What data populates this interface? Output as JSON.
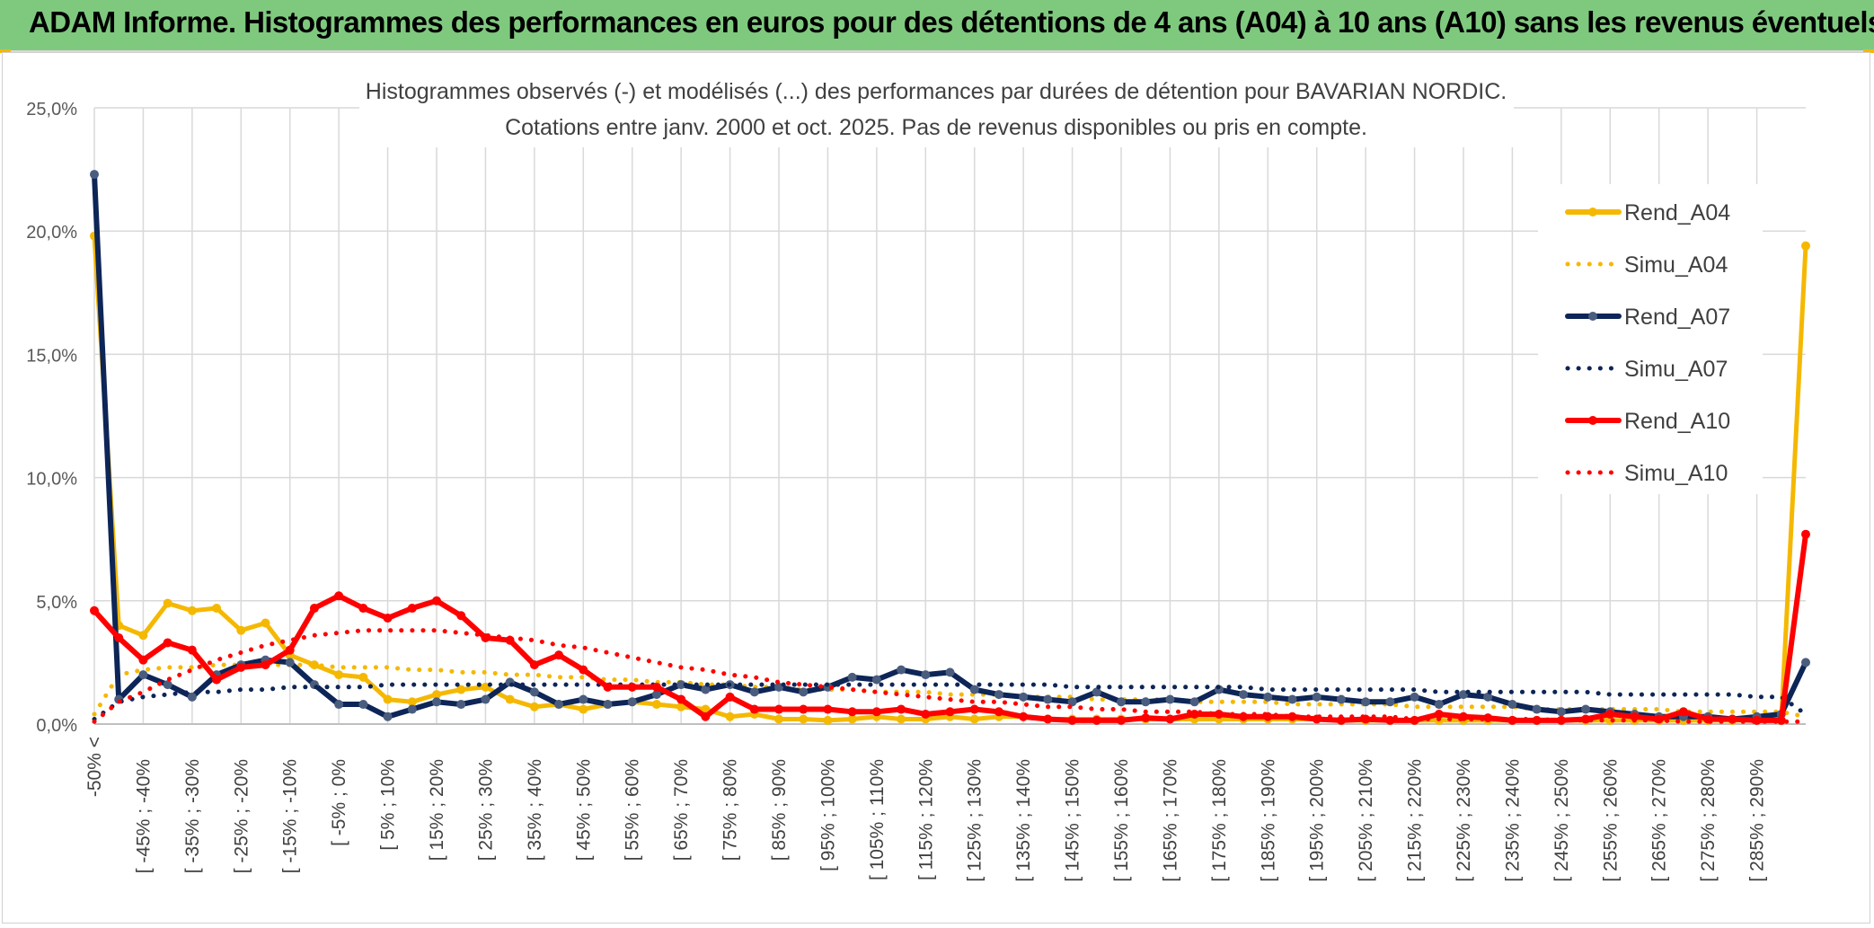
{
  "header": {
    "title": "ADAM Informe. Histogrammes des performances en euros pour des détentions de 4 ans (A04) à 10 ans (A10) sans les revenus éventuels"
  },
  "colors": {
    "header_bg": "#7fc97f",
    "A04": "#f5b800",
    "A07": "#0d2557",
    "A10": "#ff0000",
    "grid": "#d9d9d9"
  },
  "chart_data": {
    "type": "line",
    "title": "Histogrammes observés (-) et modélisés (...) des performances par durées de détention pour BAVARIAN NORDIC.",
    "subtitle": "Cotations entre janv. 2000 et oct. 2025. Pas de revenus disponibles ou pris en compte.",
    "xlabel": "",
    "ylabel": "",
    "ylim": [
      0,
      25
    ],
    "yticks": [
      "0,0%",
      "5,0%",
      "10,0%",
      "15,0%",
      "20,0%",
      "25,0%"
    ],
    "grid": true,
    "legend_position": "right",
    "x_labels": [
      "-50% <",
      "[ -45% ; -40%",
      "[ -35% ; -30%",
      "[ -25% ; -20%",
      "[ -15% ; -10%",
      "[ -5% ; 0%",
      "[ 5% ; 10%",
      "[ 15% ; 20%",
      "[ 25% ; 30%",
      "[ 35% ; 40%",
      "[ 45% ; 50%",
      "[ 55% ; 60%",
      "[ 65% ; 70%",
      "[ 75% ; 80%",
      "[ 85% ; 90%",
      "[ 95% ; 100%",
      "[ 105% ; 110%",
      "[ 115% ; 120%",
      "[ 125% ; 130%",
      "[ 135% ; 140%",
      "[ 145% ; 150%",
      "[ 155% ; 160%",
      "[ 165% ; 170%",
      "[ 175% ; 180%",
      "[ 185% ; 190%",
      "[ 195% ; 200%",
      "[ 205% ; 210%",
      "[ 215% ; 220%",
      "[ 225% ; 230%",
      "[ 235% ; 240%",
      "[ 245% ; 250%",
      "[ 255% ; 260%",
      "[ 265% ; 270%",
      "[ 275% ; 280%",
      "[ 285% ; 290%"
    ],
    "series": [
      {
        "name": "Rend_A04",
        "style": "solid",
        "color": "#f5b800",
        "values": [
          19.8,
          4.0,
          3.6,
          4.9,
          4.6,
          4.7,
          3.8,
          4.1,
          2.8,
          2.4,
          2.0,
          1.9,
          1.0,
          0.9,
          1.2,
          1.4,
          1.5,
          1.0,
          0.7,
          0.8,
          0.6,
          0.8,
          0.9,
          0.8,
          0.7,
          0.6,
          0.3,
          0.4,
          0.2,
          0.2,
          0.15,
          0.2,
          0.3,
          0.2,
          0.2,
          0.3,
          0.2,
          0.3,
          0.3,
          0.2,
          0.2,
          0.2,
          0.2,
          0.2,
          0.2,
          0.2,
          0.2,
          0.2,
          0.2,
          0.2,
          0.2,
          0.15,
          0.15,
          0.15,
          0.15,
          0.15,
          0.15,
          0.15,
          0.15,
          0.15,
          0.15,
          0.15,
          0.15,
          0.15,
          0.15,
          0.15,
          0.15,
          0.15,
          0.15,
          0.15,
          19.4
        ]
      },
      {
        "name": "Simu_A04",
        "style": "dotted",
        "color": "#f5b800",
        "values": [
          0.4,
          2.0,
          2.2,
          2.3,
          2.3,
          2.4,
          2.4,
          2.4,
          2.4,
          2.4,
          2.3,
          2.3,
          2.3,
          2.2,
          2.2,
          2.1,
          2.1,
          2.0,
          2.0,
          1.9,
          1.9,
          1.8,
          1.8,
          1.7,
          1.7,
          1.6,
          1.6,
          1.5,
          1.5,
          1.4,
          1.4,
          1.4,
          1.3,
          1.3,
          1.3,
          1.2,
          1.2,
          1.2,
          1.1,
          1.1,
          1.1,
          1.0,
          1.0,
          1.0,
          1.0,
          0.9,
          0.9,
          0.9,
          0.9,
          0.8,
          0.8,
          0.8,
          0.8,
          0.8,
          0.7,
          0.7,
          0.7,
          0.7,
          0.7,
          0.6,
          0.6,
          0.6,
          0.6,
          0.6,
          0.6,
          0.5,
          0.5,
          0.5,
          0.5,
          0.5,
          0.3
        ]
      },
      {
        "name": "Rend_A07",
        "style": "solid",
        "color": "#0d2557",
        "values": [
          22.3,
          1.0,
          2.0,
          1.6,
          1.1,
          2.0,
          2.4,
          2.6,
          2.5,
          1.6,
          0.8,
          0.8,
          0.3,
          0.6,
          0.9,
          0.8,
          1.0,
          1.7,
          1.3,
          0.8,
          1.0,
          0.8,
          0.9,
          1.2,
          1.6,
          1.4,
          1.6,
          1.3,
          1.5,
          1.3,
          1.5,
          1.9,
          1.8,
          2.2,
          2.0,
          2.1,
          1.4,
          1.2,
          1.1,
          1.0,
          0.9,
          1.3,
          0.9,
          0.9,
          1.0,
          0.9,
          1.4,
          1.2,
          1.1,
          1.0,
          1.1,
          1.0,
          0.9,
          0.9,
          1.1,
          0.8,
          1.2,
          1.1,
          0.8,
          0.6,
          0.5,
          0.6,
          0.5,
          0.4,
          0.3,
          0.3,
          0.3,
          0.2,
          0.3,
          0.4,
          2.5
        ]
      },
      {
        "name": "Simu_A07",
        "style": "dotted",
        "color": "#0d2557",
        "values": [
          0.2,
          0.9,
          1.1,
          1.2,
          1.3,
          1.3,
          1.4,
          1.4,
          1.5,
          1.5,
          1.5,
          1.5,
          1.6,
          1.6,
          1.6,
          1.6,
          1.6,
          1.6,
          1.6,
          1.6,
          1.6,
          1.6,
          1.6,
          1.6,
          1.6,
          1.6,
          1.6,
          1.6,
          1.6,
          1.6,
          1.6,
          1.6,
          1.6,
          1.6,
          1.6,
          1.6,
          1.6,
          1.6,
          1.6,
          1.6,
          1.5,
          1.5,
          1.5,
          1.5,
          1.5,
          1.5,
          1.5,
          1.5,
          1.4,
          1.4,
          1.4,
          1.4,
          1.4,
          1.4,
          1.4,
          1.3,
          1.3,
          1.3,
          1.3,
          1.3,
          1.3,
          1.3,
          1.2,
          1.2,
          1.2,
          1.2,
          1.2,
          1.2,
          1.1,
          1.1,
          0.4
        ]
      },
      {
        "name": "Rend_A10",
        "style": "solid",
        "color": "#ff0000",
        "values": [
          4.6,
          3.5,
          2.6,
          3.3,
          3.0,
          1.8,
          2.3,
          2.4,
          3.0,
          4.7,
          5.2,
          4.7,
          4.3,
          4.7,
          5.0,
          4.4,
          3.5,
          3.4,
          2.4,
          2.8,
          2.2,
          1.5,
          1.5,
          1.5,
          1.0,
          0.3,
          1.1,
          0.6,
          0.6,
          0.6,
          0.6,
          0.5,
          0.5,
          0.6,
          0.4,
          0.5,
          0.6,
          0.5,
          0.3,
          0.2,
          0.15,
          0.15,
          0.15,
          0.25,
          0.2,
          0.4,
          0.4,
          0.3,
          0.3,
          0.3,
          0.2,
          0.15,
          0.2,
          0.15,
          0.15,
          0.4,
          0.3,
          0.25,
          0.15,
          0.15,
          0.15,
          0.2,
          0.4,
          0.3,
          0.2,
          0.5,
          0.2,
          0.2,
          0.15,
          0.15,
          7.7
        ]
      },
      {
        "name": "Simu_A10",
        "style": "dotted",
        "color": "#ff0000",
        "values": [
          0.1,
          0.9,
          1.3,
          1.8,
          2.2,
          2.6,
          2.9,
          3.2,
          3.4,
          3.6,
          3.7,
          3.8,
          3.8,
          3.8,
          3.8,
          3.7,
          3.6,
          3.5,
          3.4,
          3.2,
          3.1,
          2.9,
          2.7,
          2.5,
          2.3,
          2.2,
          2.0,
          1.9,
          1.7,
          1.6,
          1.5,
          1.4,
          1.3,
          1.2,
          1.1,
          1.0,
          0.9,
          0.9,
          0.8,
          0.7,
          0.7,
          0.6,
          0.6,
          0.5,
          0.5,
          0.5,
          0.4,
          0.4,
          0.4,
          0.3,
          0.3,
          0.3,
          0.3,
          0.3,
          0.2,
          0.2,
          0.2,
          0.2,
          0.2,
          0.2,
          0.15,
          0.15,
          0.15,
          0.15,
          0.15,
          0.1,
          0.1,
          0.1,
          0.1,
          0.1,
          0.1
        ]
      }
    ]
  }
}
